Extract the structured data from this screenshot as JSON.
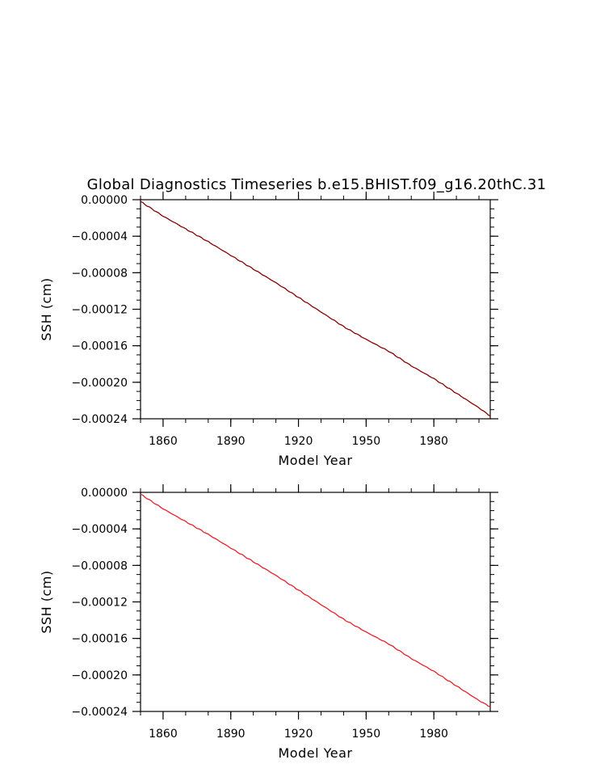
{
  "figure": {
    "title": "Global Diagnostics Timeseries b.e15.BHIST.f09_g16.20thC.31"
  },
  "chart_data": [
    {
      "type": "line",
      "title": "Global Diagnostics Timeseries b.e15.BHIST.f09_g16.20thC.31",
      "xlabel": "Model Year",
      "ylabel": "SSH (cm)",
      "xlim": [
        1850,
        2005
      ],
      "ylim": [
        -0.00024,
        0.0
      ],
      "x_ticks": [
        1860,
        1890,
        1920,
        1950,
        1980
      ],
      "x_tick_labels": [
        "1860",
        "1890",
        "1920",
        "1950",
        "1980"
      ],
      "y_ticks": [
        0.0,
        -4e-05,
        -8e-05,
        -0.00012,
        -0.00016,
        -0.0002,
        -0.00024
      ],
      "y_tick_labels": [
        "0.00000",
        "−0.00004",
        "−0.00008",
        "−0.00012",
        "−0.00016",
        "−0.00020",
        "−0.00024"
      ],
      "grid": false,
      "line_color": "#8b0000",
      "series": [
        {
          "x": [
            1850,
            1860,
            1870,
            1880,
            1890,
            1900,
            1910,
            1920,
            1930,
            1940,
            1950,
            1960,
            1970,
            1980,
            1990,
            2000,
            2005
          ],
          "values": [
            -2e-06,
            -1.8e-05,
            -3.2e-05,
            -4.6e-05,
            -6.1e-05,
            -7.6e-05,
            -9.1e-05,
            -0.000107,
            -0.000123,
            -0.000139,
            -0.000153,
            -0.000166,
            -0.000182,
            -0.000196,
            -0.000212,
            -0.000228,
            -0.000237
          ]
        }
      ]
    },
    {
      "type": "line",
      "title": "",
      "xlabel": "Model Year",
      "ylabel": "SSH (cm)",
      "xlim": [
        1850,
        2005
      ],
      "ylim": [
        -0.00024,
        0.0
      ],
      "x_ticks": [
        1860,
        1890,
        1920,
        1950,
        1980
      ],
      "x_tick_labels": [
        "1860",
        "1890",
        "1920",
        "1950",
        "1980"
      ],
      "y_ticks": [
        0.0,
        -4e-05,
        -8e-05,
        -0.00012,
        -0.00016,
        -0.0002,
        -0.00024
      ],
      "y_tick_labels": [
        "0.00000",
        "−0.00004",
        "−0.00008",
        "−0.00012",
        "−0.00016",
        "−0.00020",
        "−0.00024"
      ],
      "grid": false,
      "line_color": "#e8202a",
      "series": [
        {
          "x": [
            1850,
            1860,
            1870,
            1880,
            1890,
            1900,
            1910,
            1920,
            1930,
            1940,
            1950,
            1960,
            1970,
            1980,
            1990,
            2000,
            2005
          ],
          "values": [
            -2e-06,
            -1.8e-05,
            -3.2e-05,
            -4.6e-05,
            -6.1e-05,
            -7.6e-05,
            -9.1e-05,
            -0.000107,
            -0.000123,
            -0.000139,
            -0.000153,
            -0.000166,
            -0.000182,
            -0.000196,
            -0.000212,
            -0.000228,
            -0.000235
          ]
        }
      ]
    }
  ]
}
